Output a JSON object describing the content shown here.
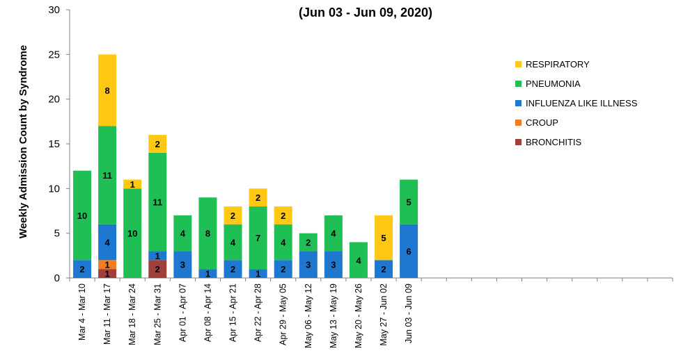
{
  "chart_data": {
    "type": "bar",
    "stacked": true,
    "title": "",
    "subtitle": "(Jun 03 - Jun 09, 2020)",
    "ylabel": "Weekly Admission Count by Syndrome",
    "xlabel": "",
    "ylim": [
      0,
      30
    ],
    "yticks": [
      0,
      5,
      10,
      15,
      20,
      25,
      30
    ],
    "grid": false,
    "legend_position": "right",
    "categories": [
      "Mar 4 - Mar 10",
      "Mar 11 - Mar 17",
      "Mar 18 - Mar 24",
      "Mar 25 - Mar 31",
      "Apr 01 - Apr 07",
      "Apr 08 - Apr 14",
      "Apr 15 - Apr 21",
      "Apr 22 - Apr 28",
      "Apr 29 - May 05",
      "May 06 - May 12",
      "May 13 - May 19",
      "May 20 - May 26",
      "May 27 - Jun 02",
      "Jun 03 - Jun 09"
    ],
    "empty_slots": 10,
    "series": [
      {
        "name": "BRONCHITIS",
        "color": "#A0403D",
        "values": [
          0,
          1,
          0,
          2,
          0,
          0,
          0,
          0,
          0,
          0,
          0,
          0,
          0,
          0
        ]
      },
      {
        "name": "CROUP",
        "color": "#F07D21",
        "values": [
          0,
          1,
          0,
          0,
          0,
          0,
          0,
          0,
          0,
          0,
          0,
          0,
          0,
          0
        ]
      },
      {
        "name": "INFLUENZA LIKE ILLNESS",
        "color": "#1F78CF",
        "values": [
          2,
          4,
          0,
          1,
          3,
          1,
          2,
          1,
          2,
          3,
          3,
          0,
          2,
          6
        ]
      },
      {
        "name": "PNEUMONIA",
        "color": "#1FBF56",
        "values": [
          10,
          11,
          10,
          11,
          4,
          8,
          4,
          7,
          4,
          2,
          4,
          4,
          0,
          5
        ]
      },
      {
        "name": "RESPIRATORY",
        "color": "#FFC913",
        "values": [
          0,
          8,
          1,
          2,
          0,
          0,
          2,
          2,
          2,
          0,
          0,
          0,
          5,
          0
        ]
      }
    ],
    "legend_order": [
      "RESPIRATORY",
      "PNEUMONIA",
      "INFLUENZA LIKE ILLNESS",
      "CROUP",
      "BRONCHITIS"
    ]
  }
}
